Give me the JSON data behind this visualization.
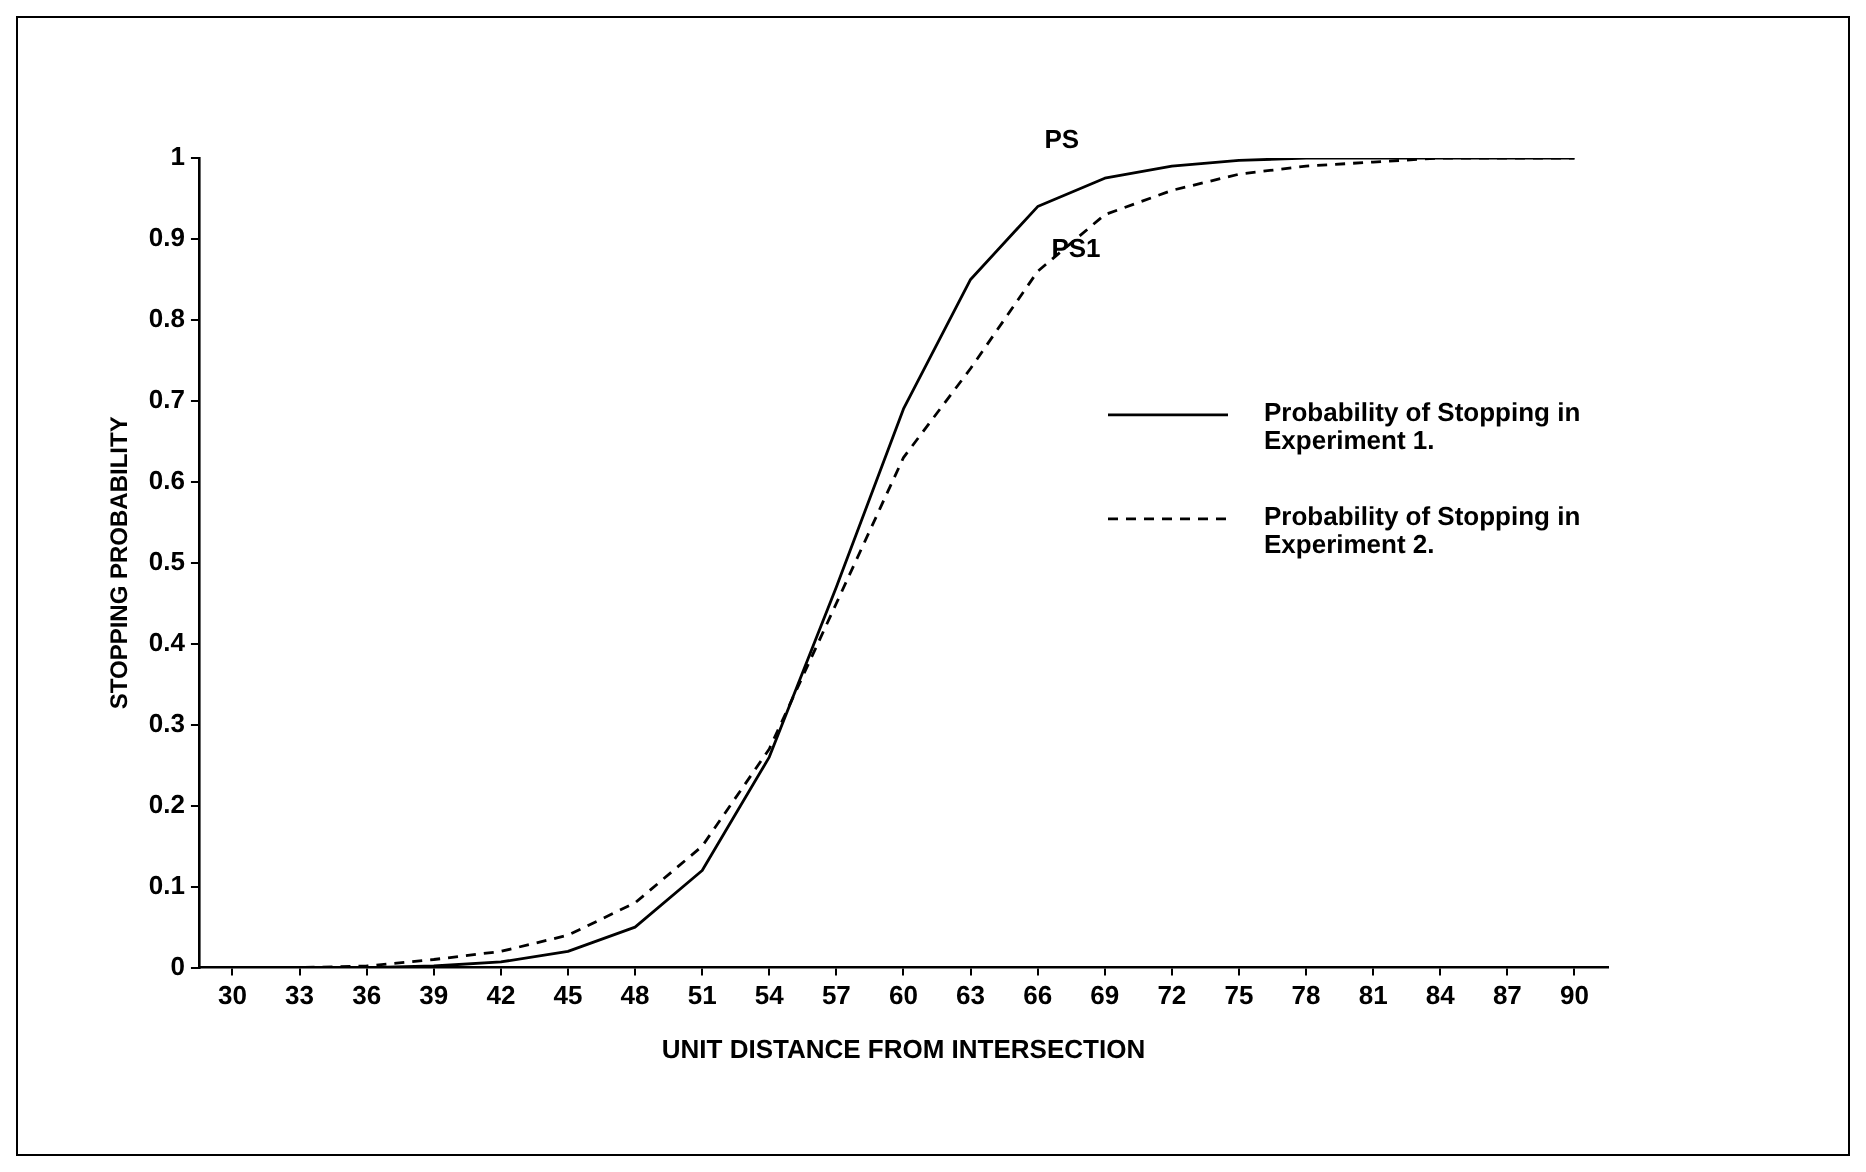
{
  "chart_data": {
    "type": "line",
    "xlabel": "UNIT DISTANCE FROM INTERSECTION",
    "ylabel": "STOPPING PROBABILITY",
    "categories": [
      "30",
      "33",
      "36",
      "39",
      "42",
      "45",
      "48",
      "51",
      "54",
      "57",
      "60",
      "63",
      "66",
      "69",
      "72",
      "75",
      "78",
      "81",
      "84",
      "87",
      "90"
    ],
    "series": [
      {
        "name": "Probability of Stopping in Experiment 1.",
        "color": "#000000",
        "line_style": "solid",
        "values": [
          0,
          0,
          0,
          0.002,
          0.007,
          0.02,
          0.05,
          0.12,
          0.26,
          0.47,
          0.69,
          0.85,
          0.94,
          0.975,
          0.99,
          0.997,
          1,
          1,
          1,
          1,
          1
        ]
      },
      {
        "name": "Probability of Stopping in Experiment 2.",
        "color": "#000000",
        "line_style": "dashed",
        "values": [
          0,
          0,
          0.002,
          0.01,
          0.02,
          0.04,
          0.08,
          0.15,
          0.27,
          0.45,
          0.63,
          0.74,
          0.86,
          0.93,
          0.96,
          0.98,
          0.99,
          0.995,
          1,
          1,
          1
        ]
      }
    ],
    "annotations": [
      "PS",
      "PS1"
    ],
    "ylim": [
      0,
      1
    ],
    "yticks": [
      0,
      0.1,
      0.2,
      0.3,
      0.4,
      0.5,
      0.6,
      0.7,
      0.8,
      0.9,
      1
    ],
    "grid": false,
    "legend": "right",
    "marker": "none"
  }
}
